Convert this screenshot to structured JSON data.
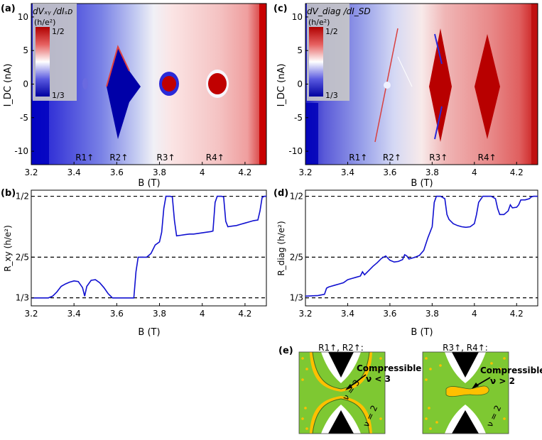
{
  "panels": {
    "a": {
      "label": "(a)",
      "cbar_title": "dVₓᵧ /dIₛᴅ",
      "cbar_unit": "(h/e²)",
      "cbar_top": "1/2",
      "cbar_bottom": "1/3"
    },
    "b": {
      "label": "(b)"
    },
    "c": {
      "label": "(c)",
      "cbar_title": "dV_diag /dI_SD",
      "cbar_unit": "(h/e²)",
      "cbar_top": "1/2",
      "cbar_bottom": "1/3"
    },
    "d": {
      "label": "(d)"
    },
    "e": {
      "label": "(e)",
      "left_title": "R1↑, R2↑:",
      "left_note1": "Compressible",
      "left_note2": "ν < 3",
      "left_nu_inner": "ν = 3",
      "left_nu_outer": "ν = 2",
      "right_title": "R3↑, R4↑:",
      "right_note1": "Compressible",
      "right_note2": "ν > 2",
      "right_nu_outer": "ν = 2"
    }
  },
  "axes": {
    "top_ylabel": "I_DC (nA)",
    "bottom_left_ylabel": "R_xy (h/e²)",
    "bottom_right_ylabel": "R_diag (h/e²)",
    "xlabel": "B (T)",
    "x_ticks": [
      "3.2",
      "3.4",
      "3.6",
      "3.8",
      "4",
      "4.2"
    ],
    "top_y_ticks": [
      "10",
      "5",
      "0",
      "-5",
      "-10"
    ],
    "bottom_y_ticks": [
      "1/2",
      "2/5",
      "1/3"
    ]
  },
  "markers": {
    "a": [
      "R1↑",
      "R2↑",
      "R3↑",
      "R4↑"
    ],
    "c": [
      "R1↑",
      "R2↑",
      "R3↑",
      "R4↑"
    ]
  },
  "chart_data": [
    {
      "type": "heatmap",
      "panel": "a",
      "xlabel": "B (T)",
      "ylabel": "I_DC (nA)",
      "xlim": [
        3.2,
        4.3
      ],
      "ylim": [
        -12,
        12
      ],
      "colorbar": {
        "min": "1/3",
        "max": "1/2",
        "colors": [
          "#0000b0",
          "#ffffff",
          "#c00000"
        ]
      }
    },
    {
      "type": "line",
      "panel": "b",
      "xlabel": "B (T)",
      "ylabel": "R_xy (h/e²)",
      "xlim": [
        3.2,
        4.3
      ],
      "ylim": [
        0.32,
        0.51
      ],
      "reference_lines": [
        0.5,
        0.4,
        0.3333
      ],
      "x": [
        3.2,
        3.28,
        3.3,
        3.32,
        3.34,
        3.36,
        3.38,
        3.4,
        3.42,
        3.44,
        3.45,
        3.46,
        3.48,
        3.5,
        3.52,
        3.54,
        3.56,
        3.58,
        3.6,
        3.62,
        3.64,
        3.66,
        3.68,
        3.69,
        3.7,
        3.72,
        3.74,
        3.76,
        3.78,
        3.8,
        3.81,
        3.82,
        3.83,
        3.84,
        3.85,
        3.86,
        3.87,
        3.88,
        3.9,
        3.92,
        3.94,
        3.96,
        3.98,
        4.0,
        4.02,
        4.04,
        4.05,
        4.06,
        4.07,
        4.08,
        4.09,
        4.1,
        4.11,
        4.12,
        4.14,
        4.16,
        4.18,
        4.2,
        4.22,
        4.24,
        4.26,
        4.27,
        4.28,
        4.29,
        4.3
      ],
      "y": [
        0.333,
        0.333,
        0.336,
        0.343,
        0.352,
        0.356,
        0.359,
        0.361,
        0.36,
        0.35,
        0.336,
        0.352,
        0.362,
        0.363,
        0.358,
        0.35,
        0.34,
        0.333,
        0.333,
        0.333,
        0.333,
        0.333,
        0.333,
        0.376,
        0.4,
        0.4,
        0.4,
        0.406,
        0.42,
        0.425,
        0.441,
        0.48,
        0.5,
        0.5,
        0.5,
        0.499,
        0.46,
        0.435,
        0.436,
        0.437,
        0.438,
        0.438,
        0.439,
        0.44,
        0.441,
        0.442,
        0.443,
        0.49,
        0.5,
        0.5,
        0.5,
        0.499,
        0.459,
        0.45,
        0.451,
        0.452,
        0.454,
        0.456,
        0.458,
        0.46,
        0.461,
        0.476,
        0.498,
        0.5,
        0.5
      ]
    },
    {
      "type": "heatmap",
      "panel": "c",
      "xlabel": "B (T)",
      "ylabel": "I_DC (nA)",
      "xlim": [
        3.2,
        4.3
      ],
      "ylim": [
        -12,
        12
      ],
      "colorbar": {
        "min": "1/3",
        "max": "1/2",
        "colors": [
          "#0000b0",
          "#ffffff",
          "#c00000"
        ]
      }
    },
    {
      "type": "line",
      "panel": "d",
      "xlabel": "B (T)",
      "ylabel": "R_diag (h/e²)",
      "xlim": [
        3.2,
        4.3
      ],
      "ylim": [
        0.32,
        0.51
      ],
      "reference_lines": [
        0.5,
        0.4,
        0.3333
      ],
      "x": [
        3.2,
        3.26,
        3.29,
        3.3,
        3.31,
        3.32,
        3.34,
        3.36,
        3.38,
        3.4,
        3.42,
        3.44,
        3.46,
        3.47,
        3.48,
        3.5,
        3.52,
        3.54,
        3.56,
        3.58,
        3.6,
        3.62,
        3.64,
        3.66,
        3.67,
        3.68,
        3.69,
        3.7,
        3.72,
        3.74,
        3.76,
        3.78,
        3.8,
        3.81,
        3.82,
        3.84,
        3.86,
        3.87,
        3.88,
        3.9,
        3.92,
        3.94,
        3.96,
        3.98,
        4.0,
        4.01,
        4.02,
        4.04,
        4.06,
        4.08,
        4.1,
        4.11,
        4.12,
        4.14,
        4.16,
        4.17,
        4.18,
        4.2,
        4.21,
        4.22,
        4.24,
        4.26,
        4.27,
        4.28,
        4.3
      ],
      "y": [
        0.336,
        0.337,
        0.339,
        0.349,
        0.351,
        0.352,
        0.354,
        0.356,
        0.358,
        0.363,
        0.365,
        0.367,
        0.369,
        0.376,
        0.371,
        0.378,
        0.385,
        0.391,
        0.398,
        0.402,
        0.395,
        0.392,
        0.393,
        0.396,
        0.404,
        0.402,
        0.397,
        0.398,
        0.4,
        0.403,
        0.411,
        0.432,
        0.45,
        0.49,
        0.5,
        0.5,
        0.496,
        0.47,
        0.462,
        0.455,
        0.452,
        0.45,
        0.449,
        0.45,
        0.455,
        0.47,
        0.49,
        0.5,
        0.5,
        0.5,
        0.496,
        0.48,
        0.47,
        0.47,
        0.476,
        0.486,
        0.481,
        0.482,
        0.486,
        0.494,
        0.494,
        0.496,
        0.499,
        0.5,
        0.5
      ]
    }
  ]
}
